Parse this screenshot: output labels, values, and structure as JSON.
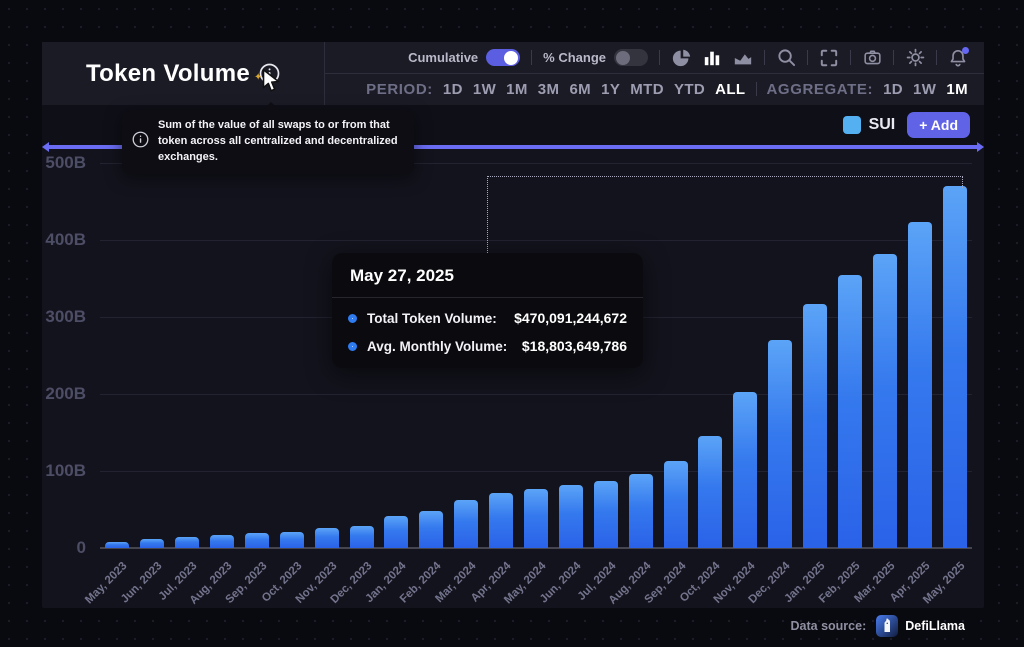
{
  "window": {
    "title": "Token Volume"
  },
  "header": {
    "controls": {
      "cumulative_label": "Cumulative",
      "cumulative_on": true,
      "percent_change_label": "% Change",
      "percent_change_on": false,
      "icons": [
        "pie-chart",
        "bar-chart",
        "area-chart",
        "search",
        "fullscreen",
        "camera",
        "settings",
        "notifications"
      ]
    },
    "period": {
      "label": "PERIOD:",
      "options": [
        "1D",
        "1W",
        "1M",
        "3M",
        "6M",
        "1Y",
        "MTD",
        "YTD",
        "ALL"
      ],
      "active": "ALL"
    },
    "aggregate": {
      "label": "AGGREGATE:",
      "options": [
        "1D",
        "1W",
        "1M"
      ],
      "active": "1M"
    }
  },
  "info_tooltip": {
    "text": "Sum of the value of all swaps to or from that token across all centralized and decentralized exchanges."
  },
  "legend": {
    "token": "SUI",
    "token_color": "#54b0f0",
    "add_label": "+ Add"
  },
  "chart_tooltip": {
    "date": "May 27, 2025",
    "rows": [
      {
        "label": "Total Token Volume:",
        "value": "$470,091,244,672"
      },
      {
        "label": "Avg. Monthly Volume:",
        "value": "$18,803,649,786"
      }
    ]
  },
  "chart_data": {
    "type": "bar",
    "title": "Token Volume (cumulative)",
    "categories": [
      "May, 2023",
      "Jun, 2023",
      "Jul, 2023",
      "Aug, 2023",
      "Sep, 2023",
      "Oct, 2023",
      "Nov, 2023",
      "Dec, 2023",
      "Jan, 2024",
      "Feb, 2024",
      "Mar, 2024",
      "Apr, 2024",
      "May, 2024",
      "Jun, 2024",
      "Jul, 2024",
      "Aug, 2024",
      "Sep, 2024",
      "Oct, 2024",
      "Nov, 2024",
      "Dec, 2024",
      "Jan, 2025",
      "Feb, 2025",
      "Mar, 2025",
      "Apr, 2025",
      "May, 2025"
    ],
    "series": [
      {
        "name": "SUI",
        "unit": "billions USD",
        "values": [
          8,
          12,
          14,
          17,
          19,
          21,
          26,
          29,
          41,
          48,
          63,
          71,
          77,
          82,
          87,
          96,
          113,
          146,
          203,
          270,
          317,
          354,
          382,
          424,
          470
        ]
      }
    ],
    "yticks": [
      {
        "label": "0",
        "value": 0
      },
      {
        "label": "100B",
        "value": 100
      },
      {
        "label": "200B",
        "value": 200
      },
      {
        "label": "300B",
        "value": 300
      },
      {
        "label": "400B",
        "value": 400
      },
      {
        "label": "500B",
        "value": 500
      }
    ],
    "ylim": [
      0,
      500
    ],
    "grid": true,
    "legend_position": "top-right",
    "highlighted_bar": "May, 2025"
  },
  "footer": {
    "data_source_label": "Data source:",
    "brand": "DefiLlama"
  },
  "colors": {
    "accent": "#6a6cf3",
    "bar_top": "#5ba4f7",
    "bar_bottom": "#2a62e8",
    "legend_sui": "#54b0f0",
    "add_button": "#6163e6",
    "toggle_on": "#5c5ee2"
  }
}
